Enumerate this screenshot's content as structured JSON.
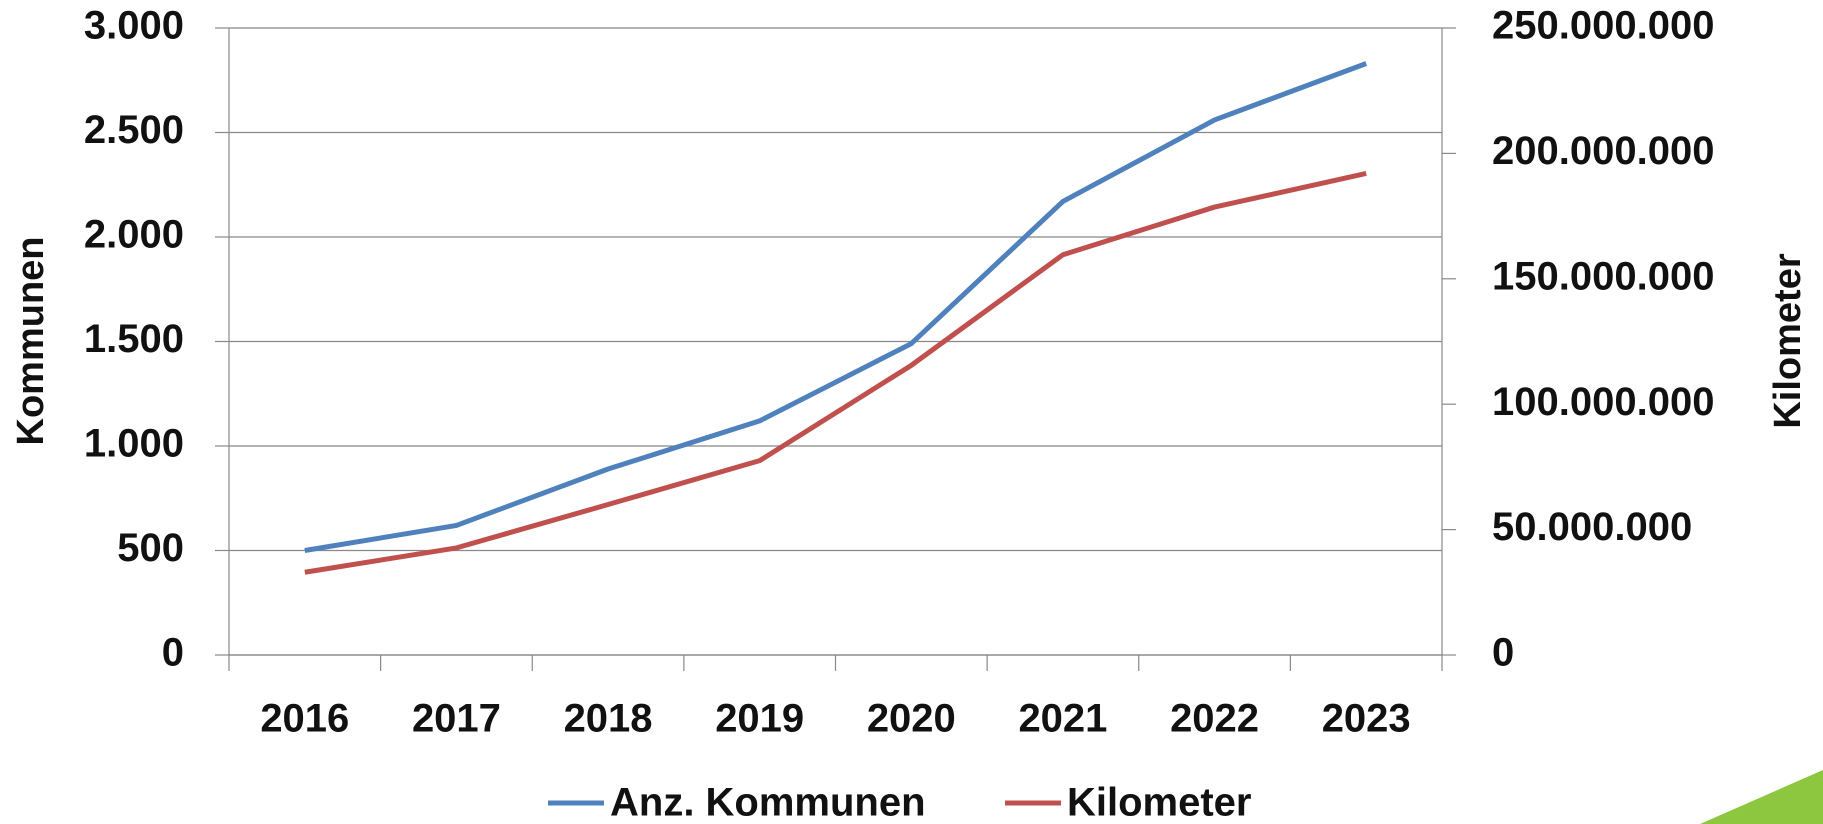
{
  "chart_data": {
    "type": "line",
    "categories": [
      "2016",
      "2017",
      "2018",
      "2019",
      "2020",
      "2021",
      "2022",
      "2023"
    ],
    "series": [
      {
        "name": "Anz. Kommunen",
        "color": "#4f81bd",
        "values": [
          500,
          620,
          890,
          1120,
          1490,
          2170,
          2560,
          2830
        ]
      },
      {
        "name": "Kilometer",
        "color": "#c0504d",
        "axis": "y2",
        "values": [
          33000000,
          42700000,
          60000000,
          77500000,
          115500000,
          159600000,
          178600000,
          192000000
        ]
      }
    ],
    "ylabel": "Kommunen",
    "y2label": "Kilometer",
    "ylim": [
      0,
      3000
    ],
    "yticks": [
      0,
      500,
      {
        "value": 1000,
        "label": "1.000"
      },
      {
        "value": 1500,
        "label": "1.500"
      },
      {
        "value": 2000,
        "label": "2.000"
      },
      {
        "value": 2500,
        "label": "2.500"
      },
      {
        "value": 3000,
        "label": "3.000"
      }
    ],
    "y2lim": [
      0,
      250000000
    ],
    "y2ticks": [
      0,
      {
        "value": 50000000,
        "label": "50.000.000"
      },
      {
        "value": 100000000,
        "label": "100.000.000"
      },
      {
        "value": 150000000,
        "label": "150.000.000"
      },
      {
        "value": 200000000,
        "label": "200.000.000"
      },
      {
        "value": 250000000,
        "label": "250.000.000"
      }
    ],
    "grid": true,
    "legend": "bottom"
  }
}
